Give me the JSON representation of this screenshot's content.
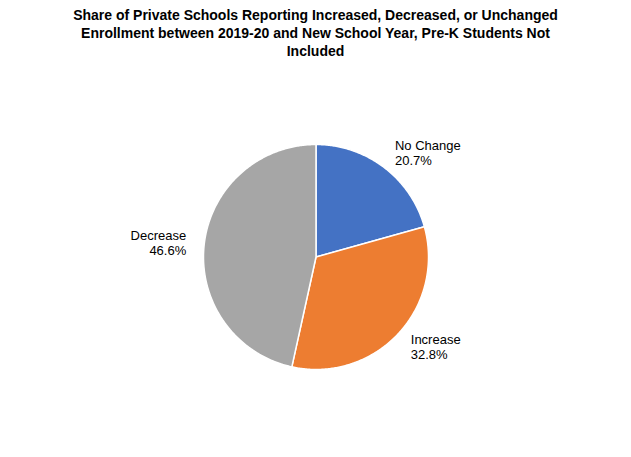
{
  "chart_data": {
    "type": "pie",
    "title": "Share of Private Schools Reporting Increased, Decreased, or Unchanged\nEnrollment between 2019-20 and New School Year, Pre-K Students Not\nIncluded",
    "categories": [
      "No Change",
      "Increase",
      "Decrease"
    ],
    "values": [
      20.7,
      32.8,
      46.6
    ],
    "value_labels": [
      "20.7%",
      "32.8%",
      "46.6%"
    ],
    "colors": [
      "#4472c4",
      "#ed7d31",
      "#a6a6a6"
    ],
    "data_labels": true
  }
}
